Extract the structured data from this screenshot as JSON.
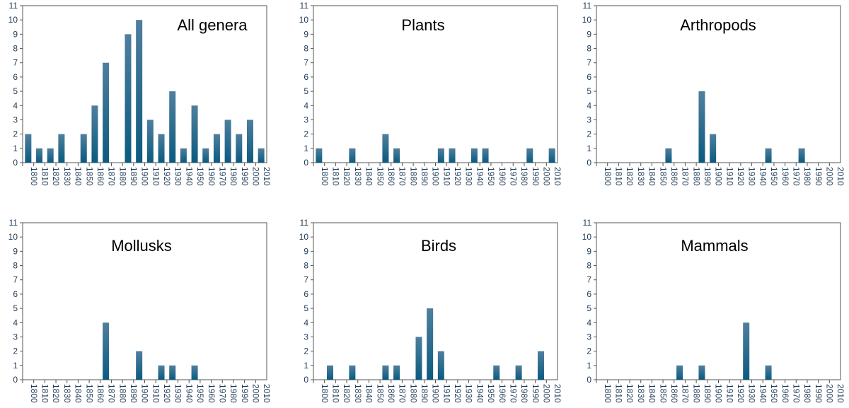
{
  "chart_data": [
    {
      "type": "bar",
      "title": "All genera",
      "categories": [
        "1800",
        "1810",
        "1820",
        "1830",
        "1840",
        "1850",
        "1860",
        "1870",
        "1880",
        "1890",
        "1900",
        "1910",
        "1920",
        "1930",
        "1940",
        "1950",
        "1960",
        "1970",
        "1980",
        "1990",
        "2000",
        "2010"
      ],
      "values": [
        2,
        1,
        1,
        2,
        0,
        2,
        4,
        7,
        0,
        9,
        10,
        3,
        2,
        5,
        1,
        4,
        1,
        2,
        3,
        2,
        3,
        1
      ],
      "ylim": [
        0,
        11
      ],
      "yticks": [
        "0",
        "1",
        "2",
        "3",
        "4",
        "5",
        "6",
        "7",
        "8",
        "9",
        "10",
        "11"
      ],
      "grid": false
    },
    {
      "type": "bar",
      "title": "Plants",
      "categories": [
        "1800",
        "1810",
        "1820",
        "1830",
        "1840",
        "1850",
        "1860",
        "1870",
        "1880",
        "1890",
        "1900",
        "1910",
        "1920",
        "1930",
        "1940",
        "1950",
        "1960",
        "1970",
        "1980",
        "1990",
        "2000",
        "2010"
      ],
      "values": [
        1,
        0,
        0,
        1,
        0,
        0,
        2,
        1,
        0,
        0,
        0,
        1,
        1,
        0,
        1,
        1,
        0,
        0,
        0,
        1,
        0,
        1
      ],
      "ylim": [
        0,
        11
      ],
      "yticks": [
        "0",
        "1",
        "2",
        "3",
        "4",
        "5",
        "6",
        "7",
        "8",
        "9",
        "10",
        "11"
      ],
      "grid": false
    },
    {
      "type": "bar",
      "title": "Arthropods",
      "categories": [
        "1800",
        "1810",
        "1820",
        "1830",
        "1840",
        "1850",
        "1860",
        "1870",
        "1880",
        "1890",
        "1900",
        "1910",
        "1920",
        "1930",
        "1940",
        "1950",
        "1960",
        "1970",
        "1980",
        "1990",
        "2000",
        "2010"
      ],
      "values": [
        0,
        0,
        0,
        0,
        0,
        0,
        1,
        0,
        0,
        5,
        2,
        0,
        0,
        0,
        0,
        1,
        0,
        0,
        1,
        0,
        0,
        0
      ],
      "ylim": [
        0,
        11
      ],
      "yticks": [
        "0",
        "1",
        "2",
        "3",
        "4",
        "5",
        "6",
        "7",
        "8",
        "9",
        "10",
        "11"
      ],
      "grid": false
    },
    {
      "type": "bar",
      "title": "Mollusks",
      "categories": [
        "1800",
        "1810",
        "1820",
        "1830",
        "1840",
        "1850",
        "1860",
        "1870",
        "1880",
        "1890",
        "1900",
        "1910",
        "1920",
        "1930",
        "1940",
        "1950",
        "1960",
        "1970",
        "1980",
        "1990",
        "2000",
        "2010"
      ],
      "values": [
        0,
        0,
        0,
        0,
        0,
        0,
        0,
        4,
        0,
        0,
        2,
        0,
        1,
        1,
        0,
        1,
        0,
        0,
        0,
        0,
        0,
        0
      ],
      "ylim": [
        0,
        11
      ],
      "yticks": [
        "0",
        "1",
        "2",
        "3",
        "4",
        "5",
        "6",
        "7",
        "8",
        "9",
        "10",
        "11"
      ],
      "grid": false
    },
    {
      "type": "bar",
      "title": "Birds",
      "categories": [
        "1800",
        "1810",
        "1820",
        "1830",
        "1840",
        "1850",
        "1860",
        "1870",
        "1880",
        "1890",
        "1900",
        "1910",
        "1920",
        "1930",
        "1940",
        "1950",
        "1960",
        "1970",
        "1980",
        "1990",
        "2000",
        "2010"
      ],
      "values": [
        0,
        1,
        0,
        1,
        0,
        0,
        1,
        1,
        0,
        3,
        5,
        2,
        0,
        0,
        0,
        0,
        1,
        0,
        1,
        0,
        2,
        0
      ],
      "ylim": [
        0,
        11
      ],
      "yticks": [
        "0",
        "1",
        "2",
        "3",
        "4",
        "5",
        "6",
        "7",
        "8",
        "9",
        "10",
        "11"
      ],
      "grid": false
    },
    {
      "type": "bar",
      "title": "Mammals",
      "categories": [
        "1800",
        "1810",
        "1820",
        "1830",
        "1840",
        "1850",
        "1860",
        "1870",
        "1880",
        "1890",
        "1900",
        "1910",
        "1920",
        "1930",
        "1940",
        "1950",
        "1960",
        "1970",
        "1980",
        "1990",
        "2000",
        "2010"
      ],
      "values": [
        0,
        0,
        0,
        0,
        0,
        0,
        0,
        1,
        0,
        1,
        0,
        0,
        0,
        4,
        0,
        1,
        0,
        0,
        0,
        0,
        0,
        0
      ],
      "ylim": [
        0,
        11
      ],
      "yticks": [
        "0",
        "1",
        "2",
        "3",
        "4",
        "5",
        "6",
        "7",
        "8",
        "9",
        "10",
        "11"
      ],
      "grid": false
    }
  ],
  "colors": {
    "bar_top": "#4f7f9d",
    "bar_bottom": "#0b5a80",
    "axis": "#555555",
    "tick_text": "#1f3a56"
  }
}
